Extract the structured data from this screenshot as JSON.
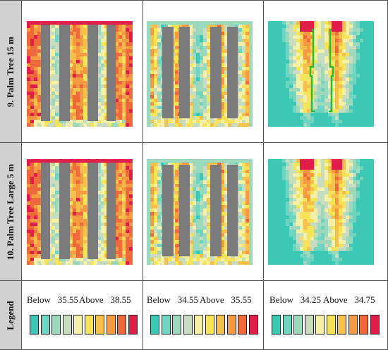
{
  "rows": [
    {
      "label": "9. Palm Tree 15 m"
    },
    {
      "label": "10. Palm Tree Large 5 m"
    },
    {
      "label": "Legend"
    }
  ],
  "legends": [
    {
      "below": "Below",
      "below_value": "35.55",
      "above": "Above",
      "above_value": "38.55"
    },
    {
      "below": "Below",
      "below_value": "34.55",
      "above": "Above",
      "above_value": "35.55"
    },
    {
      "below": "Below",
      "below_value": "34.25",
      "above": "Above",
      "above_value": "34.75"
    }
  ],
  "scale_colors": [
    "#3cc8b4",
    "#6fd5c0",
    "#9cd8bc",
    "#c8dcc0",
    "#f4f0a8",
    "#f5e45a",
    "#f7c04a",
    "#f59a40",
    "#ee6a3c",
    "#e01e4a"
  ],
  "building_color": "#7b7b7b",
  "tree_outline_color": "#2fb92f"
}
